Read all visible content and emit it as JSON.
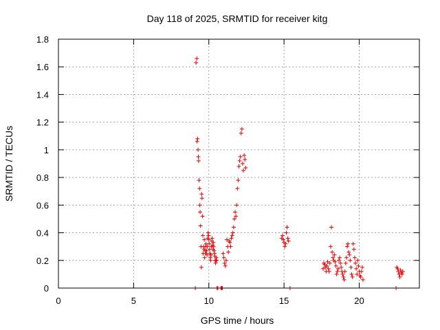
{
  "chart_data": {
    "type": "scatter",
    "title": "Day 118 of 2025, SRMTID for receiver kitg",
    "xlabel": "GPS time / hours",
    "ylabel": "SRMTID / TECUs",
    "xlim": [
      0,
      24
    ],
    "ylim": [
      0,
      1.8
    ],
    "xticks": [
      0,
      5,
      10,
      15,
      20
    ],
    "yticks": [
      0,
      0.2,
      0.4,
      0.6,
      0.8,
      1,
      1.2,
      1.4,
      1.6,
      1.8
    ],
    "xtick_labels": [
      "0",
      "5",
      "10",
      "15",
      "20"
    ],
    "ytick_labels": [
      "0",
      "0.2",
      "0.4",
      "0.6",
      "0.8",
      "1",
      "1.2",
      "1.4",
      "1.6",
      "1.8"
    ],
    "grid": true,
    "marker": "+",
    "series_color": "#e00000",
    "series": [
      {
        "name": "SRMTID",
        "x": [
          9.1,
          9.15,
          9.2,
          9.22,
          9.25,
          9.28,
          9.3,
          9.32,
          9.35,
          9.38,
          9.4,
          9.42,
          9.45,
          9.48,
          9.5,
          9.52,
          9.55,
          9.58,
          9.6,
          9.62,
          9.65,
          9.68,
          9.7,
          9.72,
          9.75,
          9.78,
          9.8,
          9.82,
          9.85,
          9.88,
          9.9,
          9.92,
          9.95,
          9.98,
          10.0,
          10.02,
          10.05,
          10.08,
          10.1,
          10.12,
          10.15,
          10.18,
          10.2,
          10.22,
          10.25,
          10.28,
          10.3,
          10.32,
          10.35,
          10.38,
          10.4,
          10.42,
          10.45,
          10.48,
          10.5,
          10.52,
          10.55,
          10.6,
          10.8,
          10.85,
          10.9,
          10.95,
          11.0,
          11.05,
          11.1,
          11.15,
          11.2,
          11.25,
          11.3,
          11.35,
          11.4,
          11.45,
          11.5,
          11.55,
          11.6,
          11.65,
          11.7,
          11.75,
          11.8,
          11.85,
          11.9,
          11.95,
          12.0,
          12.05,
          12.1,
          12.15,
          12.2,
          12.25,
          12.3,
          12.35,
          12.4,
          12.45,
          14.85,
          14.9,
          14.95,
          15.0,
          15.05,
          15.1,
          15.15,
          15.2,
          15.25,
          15.3,
          15.4,
          17.6,
          17.65,
          17.7,
          17.75,
          17.8,
          17.85,
          17.9,
          17.95,
          18.0,
          18.05,
          18.1,
          18.15,
          18.2,
          18.25,
          18.3,
          18.35,
          18.4,
          18.45,
          18.5,
          18.55,
          18.6,
          18.65,
          18.7,
          18.75,
          18.8,
          18.85,
          18.9,
          18.95,
          19.0,
          19.05,
          19.1,
          19.15,
          19.2,
          19.25,
          19.3,
          19.35,
          19.4,
          19.45,
          19.5,
          19.55,
          19.6,
          19.65,
          19.7,
          19.75,
          19.8,
          19.85,
          19.9,
          19.95,
          20.0,
          20.05,
          20.1,
          20.15,
          20.2,
          20.25,
          22.45,
          22.5,
          22.55,
          22.6,
          22.65,
          22.7,
          22.75,
          22.8,
          22.85,
          22.9
        ],
        "y": [
          0.0,
          1.63,
          1.66,
          1.06,
          1.08,
          1.0,
          0.95,
          0.92,
          0.78,
          0.72,
          0.6,
          0.55,
          0.45,
          0.3,
          0.15,
          0.68,
          0.65,
          0.52,
          0.38,
          0.25,
          0.3,
          0.28,
          0.35,
          0.22,
          0.27,
          0.3,
          0.25,
          0.32,
          0.27,
          0.24,
          0.3,
          0.36,
          0.4,
          0.38,
          0.35,
          0.32,
          0.28,
          0.25,
          0.22,
          0.2,
          0.24,
          0.3,
          0.34,
          0.36,
          0.31,
          0.28,
          0.33,
          0.3,
          0.27,
          0.25,
          0.23,
          0.2,
          0.18,
          0.2,
          0.22,
          0.2,
          0.0,
          0.0,
          0.0,
          0.0,
          0.0,
          0.25,
          0.22,
          0.18,
          0.16,
          0.2,
          0.35,
          0.3,
          0.26,
          0.34,
          0.33,
          0.3,
          0.36,
          0.38,
          0.4,
          0.44,
          0.5,
          0.55,
          0.52,
          0.6,
          0.72,
          0.78,
          0.88,
          0.92,
          0.95,
          1.12,
          1.15,
          0.9,
          0.85,
          0.96,
          0.93,
          0.87,
          0.36,
          0.38,
          0.35,
          0.33,
          0.3,
          0.32,
          0.4,
          0.44,
          0.36,
          0.34,
          0.0,
          0.14,
          0.18,
          0.17,
          0.15,
          0.12,
          0.16,
          0.19,
          0.14,
          0.12,
          0.18,
          0.3,
          0.44,
          0.26,
          0.22,
          0.2,
          0.24,
          0.19,
          0.16,
          0.1,
          0.12,
          0.14,
          0.2,
          0.22,
          0.18,
          0.15,
          0.12,
          0.1,
          0.08,
          0.06,
          0.12,
          0.18,
          0.22,
          0.3,
          0.32,
          0.26,
          0.24,
          0.2,
          0.15,
          0.1,
          0.08,
          0.32,
          0.28,
          0.22,
          0.18,
          0.14,
          0.1,
          0.2,
          0.16,
          0.12,
          0.09,
          0.08,
          0.12,
          0.15,
          0.06,
          0.0,
          0.15,
          0.14,
          0.12,
          0.1,
          0.08,
          0.13,
          0.11,
          0.1,
          0.12
        ]
      }
    ]
  }
}
